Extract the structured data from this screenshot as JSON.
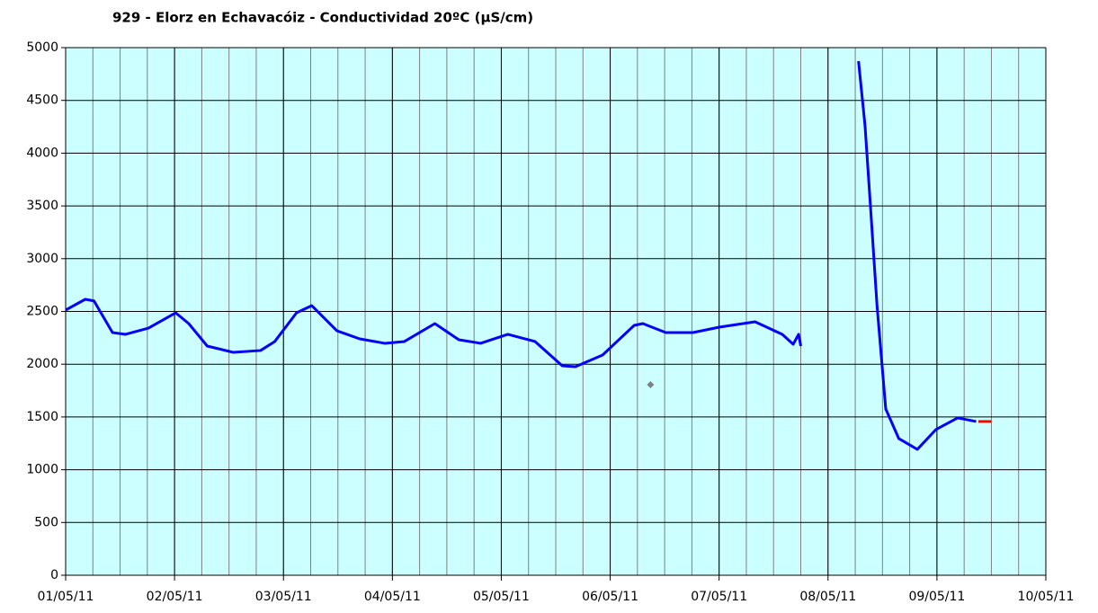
{
  "chart_data": {
    "type": "line",
    "title": "929 - Elorz en Echavacóiz - Conductividad 20ºC (µS/cm)",
    "xlim": [
      0,
      9
    ],
    "xticks": [
      {
        "value": 0,
        "label": "01/05/11"
      },
      {
        "value": 1,
        "label": "02/05/11"
      },
      {
        "value": 2,
        "label": "03/05/11"
      },
      {
        "value": 3,
        "label": "04/05/11"
      },
      {
        "value": 4,
        "label": "05/05/11"
      },
      {
        "value": 5,
        "label": "06/05/11"
      },
      {
        "value": 6,
        "label": "07/05/11"
      },
      {
        "value": 7,
        "label": "08/05/11"
      },
      {
        "value": 8,
        "label": "09/05/11"
      },
      {
        "value": 9,
        "label": "10/05/11"
      }
    ],
    "xminor_step": 0.25,
    "ylim": [
      0,
      5000
    ],
    "yticks": [
      0,
      500,
      1000,
      1500,
      2000,
      2500,
      3000,
      3500,
      4000,
      4500,
      5000
    ],
    "grid": true,
    "background": "#ccffff",
    "series": [
      {
        "color": "#0000ff",
        "marker": "line",
        "x": [
          0,
          0.18,
          0.26,
          0.43,
          0.55,
          0.76,
          1.01,
          1.13,
          1.3,
          1.54,
          1.79,
          1.92,
          2.12,
          2.26,
          2.49,
          2.7,
          2.93,
          3.11,
          3.39,
          3.61,
          3.81,
          4.06,
          4.31,
          4.56,
          4.68,
          4.93,
          5.22,
          5.3,
          5.51,
          5.76,
          6.0,
          6.33,
          6.58,
          6.68,
          6.73,
          6.75,
          null,
          7.28,
          7.34,
          7.39,
          7.45,
          7.53,
          7.65,
          7.82,
          7.99,
          8.19,
          8.36
        ],
        "values": [
          2513,
          2615,
          2600,
          2300,
          2283,
          2342,
          2487,
          2385,
          2172,
          2112,
          2130,
          2215,
          2487,
          2555,
          2317,
          2240,
          2198,
          2215,
          2385,
          2232,
          2198,
          2283,
          2215,
          1985,
          1976,
          2087,
          2368,
          2385,
          2300,
          2300,
          2351,
          2402,
          2283,
          2189,
          2283,
          2172,
          null,
          4872,
          4259,
          3492,
          2555,
          1576,
          1295,
          1193,
          1380,
          1491,
          1457
        ]
      },
      {
        "color": "#ff0000",
        "marker": "line",
        "x": [
          8.38,
          8.5
        ],
        "values": [
          1457,
          1457
        ]
      },
      {
        "color": "#808080",
        "marker": "diamond",
        "x": [
          5.37
        ],
        "values": [
          1806
        ]
      }
    ]
  }
}
